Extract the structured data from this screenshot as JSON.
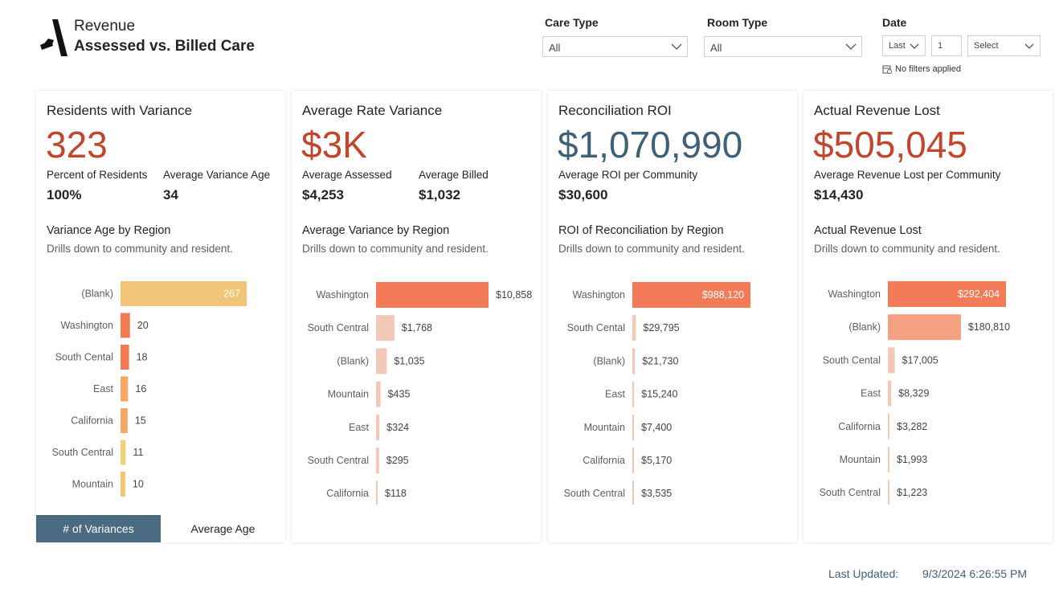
{
  "header": {
    "title_top": "Revenue",
    "title_main": "Assessed vs. Billed Care"
  },
  "filters": {
    "care_type": {
      "label": "Care Type",
      "value": "All"
    },
    "room_type": {
      "label": "Room Type",
      "value": "All"
    },
    "date": {
      "label": "Date",
      "period": "Last",
      "count": "1",
      "unit": "Select"
    },
    "status": "No filters applied"
  },
  "cards": [
    {
      "title": "Residents with Variance",
      "big_value": "323",
      "big_color": "red",
      "stats": [
        {
          "label": "Percent of Residents",
          "value": "100%"
        },
        {
          "label": "Average Variance Age",
          "value": "34"
        }
      ],
      "section_title": "Variance Age by Region",
      "section_desc": "Drills down to community and resident."
    },
    {
      "title": "Average Rate Variance",
      "big_value": "$3K",
      "big_color": "red",
      "stats": [
        {
          "label": "Average Assessed",
          "value": "$4,253"
        },
        {
          "label": "Average Billed",
          "value": "$1,032"
        }
      ],
      "section_title": "Average Variance by Region",
      "section_desc": "Drills down to community and resident."
    },
    {
      "title": "Reconciliation ROI",
      "big_value": "$1,070,990",
      "big_color": "blue",
      "stats": [
        {
          "label": "Average ROI per Community",
          "value": "$30,600"
        }
      ],
      "section_title": "ROI of Reconciliation by Region",
      "section_desc": "Drills down to community and resident."
    },
    {
      "title": "Actual Revenue Lost",
      "big_value": "$505,045",
      "big_color": "red",
      "stats": [
        {
          "label": "Average Revenue Lost per Community",
          "value": "$14,430"
        }
      ],
      "section_title": "Actual Revenue Lost",
      "section_desc": "Drills down to community and resident."
    }
  ],
  "chart_data": [
    {
      "type": "bar",
      "orientation": "horizontal",
      "title": "Variance Age by Region",
      "categories": [
        "(Blank)",
        "Washington",
        "South Cental",
        "East",
        "California",
        "South Central",
        "Mountain"
      ],
      "values": [
        267,
        20,
        18,
        16,
        15,
        11,
        10
      ],
      "labels": [
        "267",
        "20",
        "18",
        "16",
        "15",
        "11",
        "10"
      ],
      "colors": [
        "#f0c577",
        "#f07a55",
        "#f07a55",
        "#f3a868",
        "#f3a868",
        "#f0d27a",
        "#f0c577"
      ],
      "max": 267
    },
    {
      "type": "bar",
      "orientation": "horizontal",
      "title": "Average Variance by Region",
      "categories": [
        "Washington",
        "South Central",
        "(Blank)",
        "Mountain",
        "East",
        "South Central",
        "California"
      ],
      "values": [
        10858,
        1768,
        1035,
        435,
        324,
        295,
        118
      ],
      "labels": [
        "$10,858",
        "$1,768",
        "$1,035",
        "$435",
        "$324",
        "$295",
        "$118"
      ],
      "colors": [
        "#f47b58",
        "#f2c8b8",
        "#f2c8b8",
        "#f2c8b8",
        "#f2c8b8",
        "#f2c8b8",
        "#f2c8b8"
      ],
      "max": 10858
    },
    {
      "type": "bar",
      "orientation": "horizontal",
      "title": "ROI of Reconciliation by Region",
      "categories": [
        "Washington",
        "South Cental",
        "(Blank)",
        "East",
        "Mountain",
        "California",
        "South Central"
      ],
      "values": [
        988120,
        29795,
        21730,
        15240,
        7400,
        5170,
        3535
      ],
      "labels": [
        "$988,120",
        "$29,795",
        "$21,730",
        "$15,240",
        "$7,400",
        "$5,170",
        "$3,535"
      ],
      "colors": [
        "#f47b58",
        "#f2c8b8",
        "#f2c8b8",
        "#f2c8b8",
        "#f2c8b8",
        "#f2c8b8",
        "#f2c8b8"
      ],
      "max": 988120
    },
    {
      "type": "bar",
      "orientation": "horizontal",
      "title": "Actual Revenue Lost",
      "categories": [
        "Washington",
        "(Blank)",
        "South Cental",
        "East",
        "California",
        "Mountain",
        "South Central"
      ],
      "values": [
        292404,
        180810,
        17005,
        8329,
        3282,
        1993,
        1223
      ],
      "labels": [
        "$292,404",
        "$180,810",
        "$17,005",
        "$8,329",
        "$3,282",
        "$1,993",
        "$1,223"
      ],
      "colors": [
        "#f47b58",
        "#f3a083",
        "#f2c8b8",
        "#f2c8b8",
        "#f2c8b8",
        "#f2c8b8",
        "#f2c8b8"
      ],
      "max": 292404
    }
  ],
  "tabs": {
    "active": "# of Variances",
    "inactive": "Average Age"
  },
  "footer": {
    "label": "Last Updated:",
    "value": "9/3/2024 6:26:55 PM"
  }
}
